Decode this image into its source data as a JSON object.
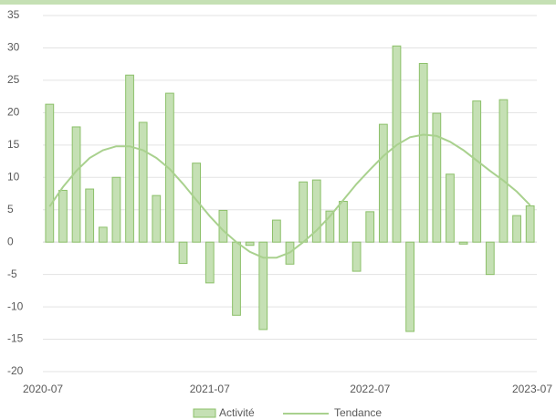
{
  "chart_data": {
    "type": "bar-line",
    "categories": [
      "2020-07",
      null,
      null,
      null,
      null,
      null,
      null,
      null,
      null,
      null,
      null,
      null,
      "2021-07",
      null,
      null,
      null,
      null,
      null,
      null,
      null,
      null,
      null,
      null,
      null,
      "2022-07",
      null,
      null,
      null,
      null,
      null,
      null,
      null,
      null,
      null,
      null,
      null,
      "2023-07"
    ],
    "series": [
      {
        "name": "Activité",
        "type": "bar",
        "color": "#c5e0b4",
        "values": [
          21.3,
          8,
          17.8,
          8.2,
          2.3,
          10,
          25.8,
          18.5,
          7.2,
          23,
          -3.3,
          12.2,
          -6.3,
          4.9,
          -11.3,
          -0.5,
          -13.5,
          3.4,
          -3.4,
          9.3,
          9.6,
          4.8,
          6.3,
          -4.5,
          4.7,
          18.2,
          30.3,
          -13.8,
          27.6,
          19.9,
          10.5,
          -0.3,
          21.8,
          -5,
          22,
          4.1,
          5.6
        ]
      },
      {
        "name": "Tendance",
        "type": "line",
        "color": "#a9d18e",
        "values": [
          5.5,
          8.5,
          11,
          13,
          14.2,
          14.8,
          14.8,
          14.2,
          13,
          11.3,
          9,
          6.5,
          4,
          1.8,
          0,
          -1.5,
          -2.4,
          -2.4,
          -1.6,
          0,
          1.8,
          4,
          6.5,
          9,
          11.2,
          13.3,
          15,
          16.2,
          16.6,
          16.4,
          15.5,
          14.2,
          12.6,
          11,
          9.5,
          7.8,
          5.7
        ]
      }
    ],
    "ylim": [
      -20,
      35
    ],
    "yticks": [
      -20,
      -15,
      -10,
      -5,
      0,
      5,
      10,
      15,
      20,
      25,
      30,
      35
    ],
    "grid": true,
    "legend": "bottom"
  }
}
